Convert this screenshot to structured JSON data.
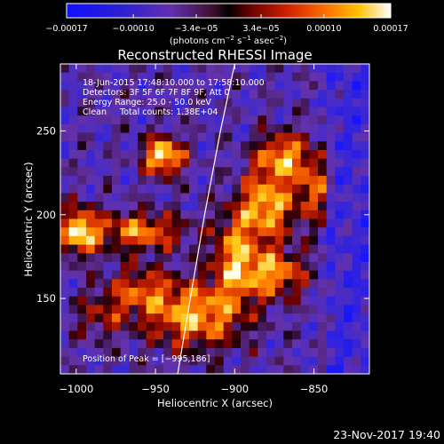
{
  "chart_data": {
    "type": "heatmap",
    "title": "Reconstructed RHESSI Image",
    "xlabel": "Heliocentric X (arcsec)",
    "ylabel": "Heliocentric Y (arcsec)",
    "xlim": [
      -1010,
      -815
    ],
    "ylim": [
      105,
      290
    ],
    "x_ticks": [
      {
        "value": -1000,
        "label": "−1000"
      },
      {
        "value": -950,
        "label": "−950"
      },
      {
        "value": -900,
        "label": "−900"
      },
      {
        "value": -850,
        "label": "−850"
      }
    ],
    "y_ticks": [
      {
        "value": 150,
        "label": "150"
      },
      {
        "value": 200,
        "label": "200"
      },
      {
        "value": 250,
        "label": "250"
      }
    ],
    "colorbar": {
      "range": [
        -0.00017,
        0.00017
      ],
      "ticks": [
        {
          "value": -0.00017,
          "label": "−0.00017"
        },
        {
          "value": -0.0001,
          "label": "−0.00010"
        },
        {
          "value": -3.4e-05,
          "label": "−3.4e−05"
        },
        {
          "value": 3.4e-05,
          "label": "3.4e−05"
        },
        {
          "value": 0.0001,
          "label": "0.00010"
        },
        {
          "value": 0.00017,
          "label": "0.00017"
        }
      ],
      "unit_main": "(photons cm",
      "unit_exp1": "−2",
      "unit_mid": " s",
      "unit_exp2": "−1",
      "unit_end": " asec",
      "unit_exp3": "−2",
      "unit_close": ")"
    },
    "annotations": {
      "time": "18-Jun-2015 17:48:10.000 to 17:58:10.000",
      "detectors": "Detectors: 3F 5F 6F 7F 8F 9F, Att 0",
      "energy": "Energy Range: 25.0 - 50.0 keV",
      "clean": "Clean     Total counts: 1.38E+04",
      "peak": "Position of Peak = [−995,186]"
    },
    "limb": [
      {
        "x": -936.0,
        "y": 105
      },
      {
        "x": -928.0,
        "y": 150
      },
      {
        "x": -919.0,
        "y": 200
      },
      {
        "x": -909.0,
        "y": 250
      },
      {
        "x": -900.0,
        "y": 290
      }
    ],
    "hotspots": [
      {
        "x": -945,
        "y": 235,
        "amp": 1.0,
        "sx": 9,
        "sy": 8
      },
      {
        "x": -998,
        "y": 190,
        "amp": 0.95,
        "sx": 8,
        "sy": 10
      },
      {
        "x": -925,
        "y": 140,
        "amp": 0.8,
        "sx": 22,
        "sy": 14
      },
      {
        "x": -880,
        "y": 205,
        "amp": 0.85,
        "sx": 12,
        "sy": 14
      },
      {
        "x": -870,
        "y": 235,
        "amp": 0.75,
        "sx": 12,
        "sy": 10
      },
      {
        "x": -875,
        "y": 165,
        "amp": 0.75,
        "sx": 14,
        "sy": 10
      },
      {
        "x": -960,
        "y": 190,
        "amp": 0.7,
        "sx": 20,
        "sy": 8
      },
      {
        "x": -900,
        "y": 175,
        "amp": 0.7,
        "sx": 10,
        "sy": 18
      },
      {
        "x": -850,
        "y": 215,
        "amp": 0.55,
        "sx": 8,
        "sy": 14
      },
      {
        "x": -960,
        "y": 155,
        "amp": 0.5,
        "sx": 14,
        "sy": 10
      },
      {
        "x": -985,
        "y": 140,
        "amp": 0.35,
        "sx": 12,
        "sy": 10
      }
    ]
  },
  "footer": {
    "date": "23-Nov-2017 19:40"
  },
  "colors": {
    "background": "#000000",
    "text": "#ffffff",
    "limb": "#ffffff"
  }
}
